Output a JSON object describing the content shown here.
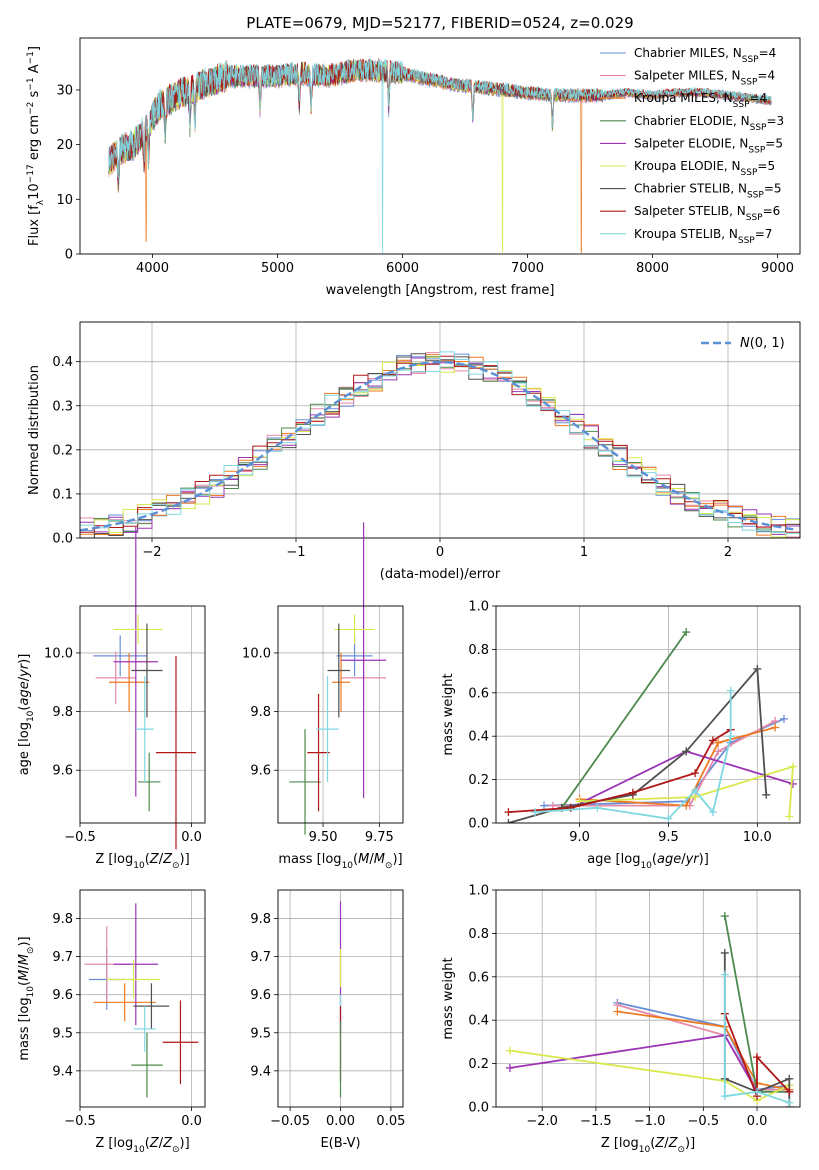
{
  "title": "PLATE=0679, MJD=52177, FIBERID=0524, z=0.029",
  "colors": {
    "Chabrier MILES": "#6a8fd8",
    "Salpeter MILES": "#e58aa8",
    "Kroupa MILES": "#ee7a22",
    "Chabrier ELODIE": "#4d8a4d",
    "Salpeter ELODIE": "#9b35b5",
    "Kroupa ELODIE": "#d9e84d",
    "Chabrier STELIB": "#505050",
    "Salpeter STELIB": "#b01818",
    "Kroupa STELIB": "#7fd8e0",
    "gauss": "#5b8fd6"
  },
  "chart_data": [
    {
      "type": "line",
      "panel": "spectrum",
      "title": "PLATE=0679, MJD=52177, FIBERID=0524, z=0.029",
      "xlabel": "wavelength [Angstrom, rest frame]",
      "ylabel": "Flux [f_λ10^-17 erg cm^-2 s^-1 A^-1]",
      "xlim": [
        3420,
        9180
      ],
      "ylim": [
        0,
        39.5
      ],
      "xticks": [
        "4000",
        "5000",
        "6000",
        "7000",
        "8000",
        "9000"
      ],
      "yticks": [
        "0",
        "10",
        "20",
        "30"
      ],
      "legend_position": "top-right",
      "legend": [
        "Chabrier MILES, N_SSP=4",
        "Salpeter MILES, N_SSP=4",
        "Kroupa MILES, N_SSP=4",
        "Chabrier ELODIE, N_SSP=3",
        "Salpeter ELODIE, N_SSP=5",
        "Kroupa ELODIE, N_SSP=5",
        "Chabrier STELIB, N_SSP=5",
        "Salpeter STELIB, N_SSP=6",
        "Kroupa STELIB, N_SSP=7"
      ],
      "continuum": {
        "x": [
          3650,
          3750,
          3850,
          3950,
          4050,
          4200,
          4400,
          4600,
          4800,
          5000,
          5200,
          5400,
          5600,
          5800,
          6000,
          6200,
          6400,
          6600,
          6800,
          7000,
          7200,
          7400,
          7600,
          7800,
          8000,
          8200,
          8400,
          8600,
          8800,
          8950
        ],
        "y": [
          17,
          19,
          20,
          23,
          27,
          29,
          31,
          32.5,
          32.5,
          32.5,
          33,
          32.5,
          33.5,
          33.5,
          33,
          32,
          31,
          30.5,
          30,
          29.5,
          29,
          29,
          29,
          29.5,
          29,
          29.5,
          29.5,
          29,
          28.5,
          28
        ]
      },
      "dips": [
        {
          "series": "Kroupa MILES",
          "x": 3950,
          "y": 0
        },
        {
          "series": "Kroupa STELIB",
          "x": 5840,
          "y": 0
        },
        {
          "series": "Kroupa ELODIE",
          "x": 6800,
          "y": 0
        },
        {
          "series": "Kroupa MILES",
          "x": 7430,
          "y": 0
        }
      ]
    },
    {
      "type": "histogram",
      "panel": "residuals",
      "xlabel": "(data-model)/error",
      "ylabel": "Normed distribution",
      "xlim": [
        -2.5,
        2.5
      ],
      "ylim": [
        0,
        0.49
      ],
      "xticks": [
        "−2",
        "−1",
        "0",
        "1",
        "2"
      ],
      "yticks": [
        "0.0",
        "0.1",
        "0.2",
        "0.3",
        "0.4"
      ],
      "grid": true,
      "legend_position": "top-right",
      "legend": [
        "N(0,1)"
      ],
      "bin_width": 0.1
    },
    {
      "type": "errorbar",
      "panel": "age-vs-Z",
      "xlabel": "Z [log10(Z/Z☉)]",
      "ylabel": "age [log10(age/yr)]",
      "xlim": [
        -0.5,
        0.06
      ],
      "ylim": [
        9.42,
        10.16
      ],
      "xticks": [
        "−0.5",
        "0.0"
      ],
      "yticks": [
        "9.6",
        "9.8",
        "10.0"
      ],
      "grid": true,
      "points": [
        {
          "series": "Chabrier MILES",
          "x": -0.32,
          "xerr": 0.12,
          "y": 9.99,
          "yerr": 0.07
        },
        {
          "series": "Salpeter MILES",
          "x": -0.34,
          "xerr": 0.09,
          "y": 9.915,
          "yerr": 0.09
        },
        {
          "series": "Kroupa MILES",
          "x": -0.28,
          "xerr": 0.09,
          "y": 9.9,
          "yerr": 0.1
        },
        {
          "series": "Chabrier ELODIE",
          "x": -0.19,
          "xerr": 0.05,
          "y": 9.56,
          "yerr": 0.1
        },
        {
          "series": "Salpeter ELODIE",
          "x": -0.25,
          "xerr": 0.1,
          "y": 9.97,
          "yerr": 0.46
        },
        {
          "series": "Kroupa ELODIE",
          "x": -0.24,
          "xerr": 0.11,
          "y": 10.08,
          "yerr": 0.05
        },
        {
          "series": "Chabrier STELIB",
          "x": -0.2,
          "xerr": 0.07,
          "y": 9.94,
          "yerr": 0.16
        },
        {
          "series": "Salpeter STELIB",
          "x": -0.07,
          "xerr": 0.09,
          "y": 9.66,
          "yerr": 0.33
        },
        {
          "series": "Kroupa STELIB",
          "x": -0.21,
          "xerr": 0.04,
          "y": 9.74,
          "yerr": 0.18
        }
      ]
    },
    {
      "type": "errorbar",
      "panel": "age-vs-mass",
      "xlabel": "mass [log10(M/M☉)]",
      "ylabel": "",
      "xlim": [
        9.3,
        9.855
      ],
      "ylim": [
        9.42,
        10.16
      ],
      "xticks": [
        "9.50",
        "9.75"
      ],
      "yticks": [
        "9.6",
        "9.8",
        "10.0"
      ],
      "grid": true,
      "points": [
        {
          "series": "Chabrier MILES",
          "x": 9.64,
          "xerr": 0.08,
          "y": 9.99,
          "yerr": 0.07
        },
        {
          "series": "Salpeter MILES",
          "x": 9.68,
          "xerr": 0.1,
          "y": 9.915,
          "yerr": 0.09
        },
        {
          "series": "Kroupa MILES",
          "x": 9.58,
          "xerr": 0.04,
          "y": 9.9,
          "yerr": 0.1
        },
        {
          "series": "Chabrier ELODIE",
          "x": 9.42,
          "xerr": 0.07,
          "y": 9.56,
          "yerr": 0.18
        },
        {
          "series": "Salpeter ELODIE",
          "x": 9.68,
          "xerr": 0.1,
          "y": 9.975,
          "yerr": 0.47
        },
        {
          "series": "Kroupa ELODIE",
          "x": 9.64,
          "xerr": 0.09,
          "y": 10.08,
          "yerr": 0.05
        },
        {
          "series": "Chabrier STELIB",
          "x": 9.57,
          "xerr": 0.05,
          "y": 9.94,
          "yerr": 0.16
        },
        {
          "series": "Salpeter STELIB",
          "x": 9.48,
          "xerr": 0.05,
          "y": 9.66,
          "yerr": 0.2
        },
        {
          "series": "Kroupa STELIB",
          "x": 9.52,
          "xerr": 0.05,
          "y": 9.74,
          "yerr": 0.18
        }
      ]
    },
    {
      "type": "line",
      "panel": "mass-weight-vs-age",
      "xlabel": "age [log10(age/yr)]",
      "ylabel": "mass weight",
      "xlim": [
        8.53,
        10.24
      ],
      "ylim": [
        0,
        1.0
      ],
      "xticks": [
        "9.0",
        "9.5",
        "10.0"
      ],
      "yticks": [
        "0.0",
        "0.2",
        "0.4",
        "0.6",
        "0.8",
        "1.0"
      ],
      "grid": true,
      "series": [
        {
          "name": "Chabrier MILES",
          "x": [
            8.8,
            9.6,
            9.85,
            10.15
          ],
          "y": [
            0.08,
            0.1,
            0.37,
            0.48
          ]
        },
        {
          "name": "Salpeter MILES",
          "x": [
            8.85,
            9.62,
            9.78,
            10.1
          ],
          "y": [
            0.08,
            0.08,
            0.33,
            0.47
          ]
        },
        {
          "name": "Kroupa MILES",
          "x": [
            9.0,
            9.6,
            9.78,
            10.1
          ],
          "y": [
            0.11,
            0.08,
            0.37,
            0.44
          ]
        },
        {
          "name": "Chabrier ELODIE",
          "x": [
            8.9,
            9.6
          ],
          "y": [
            0.07,
            0.88
          ]
        },
        {
          "name": "Salpeter ELODIE",
          "x": [
            8.95,
            9.6,
            10.2
          ],
          "y": [
            0.07,
            0.33,
            0.18
          ]
        },
        {
          "name": "Kroupa ELODIE",
          "x": [
            9.0,
            9.65,
            10.2,
            10.18
          ],
          "y": [
            0.1,
            0.12,
            0.26,
            0.03
          ]
        },
        {
          "name": "Chabrier STELIB",
          "x": [
            8.6,
            8.9,
            9.3,
            9.6,
            10.0,
            10.05
          ],
          "y": [
            0.0,
            0.07,
            0.13,
            0.33,
            0.71,
            0.13
          ]
        },
        {
          "name": "Salpeter STELIB",
          "x": [
            8.6,
            8.95,
            9.3,
            9.65,
            9.75,
            9.85
          ],
          "y": [
            0.05,
            0.07,
            0.14,
            0.23,
            0.38,
            0.43
          ]
        },
        {
          "name": "Kroupa STELIB",
          "x": [
            8.75,
            9.1,
            9.5,
            9.65,
            9.75,
            9.85,
            9.85
          ],
          "y": [
            0.05,
            0.07,
            0.02,
            0.15,
            0.05,
            0.4,
            0.61
          ]
        }
      ]
    },
    {
      "type": "errorbar",
      "panel": "mass-vs-Z",
      "xlabel": "Z [log10(Z/Z☉)]",
      "ylabel": "mass [log10(M/M☉)]",
      "xlim": [
        -0.5,
        0.06
      ],
      "ylim": [
        9.305,
        9.875
      ],
      "xticks": [
        "−0.5",
        "0.0"
      ],
      "yticks": [
        "9.4",
        "9.5",
        "9.6",
        "9.7",
        "9.8"
      ],
      "grid": true,
      "points": [
        {
          "series": "Chabrier MILES",
          "x": -0.38,
          "xerr": 0.08,
          "y": 9.64,
          "yerr": 0.08
        },
        {
          "series": "Salpeter MILES",
          "x": -0.38,
          "xerr": 0.1,
          "y": 9.68,
          "yerr": 0.1
        },
        {
          "series": "Kroupa MILES",
          "x": -0.3,
          "xerr": 0.14,
          "y": 9.58,
          "yerr": 0.05
        },
        {
          "series": "Chabrier ELODIE",
          "x": -0.2,
          "xerr": 0.07,
          "y": 9.415,
          "yerr": 0.085
        },
        {
          "series": "Salpeter ELODIE",
          "x": -0.25,
          "xerr": 0.1,
          "y": 9.68,
          "yerr": 0.16
        },
        {
          "series": "Kroupa ELODIE",
          "x": -0.26,
          "xerr": 0.12,
          "y": 9.64,
          "yerr": 0.05
        },
        {
          "series": "Chabrier STELIB",
          "x": -0.18,
          "xerr": 0.08,
          "y": 9.57,
          "yerr": 0.06
        },
        {
          "series": "Salpeter STELIB",
          "x": -0.05,
          "xerr": 0.08,
          "y": 9.475,
          "yerr": 0.11
        },
        {
          "series": "Kroupa STELIB",
          "x": -0.21,
          "xerr": 0.05,
          "y": 9.51,
          "yerr": 0.06
        }
      ]
    },
    {
      "type": "errorbar",
      "panel": "mass-vs-ebv",
      "xlabel": "E(B-V)",
      "ylabel": "",
      "xlim": [
        -0.062,
        0.062
      ],
      "ylim": [
        9.305,
        9.875
      ],
      "xticks": [
        "−0.05",
        "0.00",
        "0.05"
      ],
      "yticks": [
        "9.4",
        "9.5",
        "9.6",
        "9.7",
        "9.8"
      ],
      "grid": true,
      "points": [
        {
          "series": "Salpeter ELODIE",
          "x": 0.0,
          "y": 9.675,
          "yerr": 0.17
        },
        {
          "series": "Kroupa ELODIE",
          "x": 0.0,
          "y": 9.67,
          "yerr": 0.05
        },
        {
          "series": "Kroupa STELIB",
          "x": 0.0,
          "y": 9.55,
          "yerr": 0.05
        },
        {
          "series": "Salpeter STELIB",
          "x": 0.0,
          "y": 9.47,
          "yerr": 0.1
        },
        {
          "series": "Chabrier ELODIE",
          "x": 0.0,
          "y": 9.43,
          "yerr": 0.1
        }
      ]
    },
    {
      "type": "line",
      "panel": "mass-weight-vs-Z",
      "xlabel": "Z [log10(Z/Z☉)]",
      "ylabel": "mass weight",
      "xlim": [
        -2.43,
        0.4
      ],
      "ylim": [
        0,
        1.0
      ],
      "xticks": [
        "−2.0",
        "−1.5",
        "−1.0",
        "−0.5",
        "0.0"
      ],
      "yticks": [
        "0.0",
        "0.2",
        "0.4",
        "0.6",
        "0.8",
        "1.0"
      ],
      "grid": true,
      "series": [
        {
          "name": "Chabrier MILES",
          "x": [
            -1.3,
            -0.3,
            0.0,
            0.3
          ],
          "y": [
            0.48,
            0.37,
            0.08,
            0.1
          ]
        },
        {
          "name": "Salpeter MILES",
          "x": [
            -1.3,
            -0.3,
            0.0,
            0.3
          ],
          "y": [
            0.47,
            0.33,
            0.08,
            0.08
          ]
        },
        {
          "name": "Kroupa MILES",
          "x": [
            -1.3,
            -0.3,
            0.0,
            0.3
          ],
          "y": [
            0.44,
            0.37,
            0.11,
            0.08
          ]
        },
        {
          "name": "Chabrier ELODIE",
          "x": [
            -0.3,
            0.0,
            0.3
          ],
          "y": [
            0.88,
            0.07,
            0.07
          ]
        },
        {
          "name": "Salpeter ELODIE",
          "x": [
            -2.3,
            -0.3,
            0.0
          ],
          "y": [
            0.18,
            0.33,
            0.07
          ]
        },
        {
          "name": "Kroupa ELODIE",
          "x": [
            -2.3,
            -0.3,
            0.0,
            0.3
          ],
          "y": [
            0.26,
            0.12,
            0.03,
            0.1
          ]
        },
        {
          "name": "Chabrier STELIB",
          "x": [
            -0.3,
            -0.3,
            0.0,
            0.3,
            0.3
          ],
          "y": [
            0.71,
            0.13,
            0.07,
            0.13,
            0.0
          ]
        },
        {
          "name": "Salpeter STELIB",
          "x": [
            -0.3,
            0.0,
            0.0,
            0.3
          ],
          "y": [
            0.43,
            0.05,
            0.23,
            0.07
          ]
        },
        {
          "name": "Kroupa STELIB",
          "x": [
            -0.3,
            -0.3,
            0.0,
            0.3
          ],
          "y": [
            0.61,
            0.05,
            0.07,
            0.02
          ]
        }
      ]
    }
  ]
}
